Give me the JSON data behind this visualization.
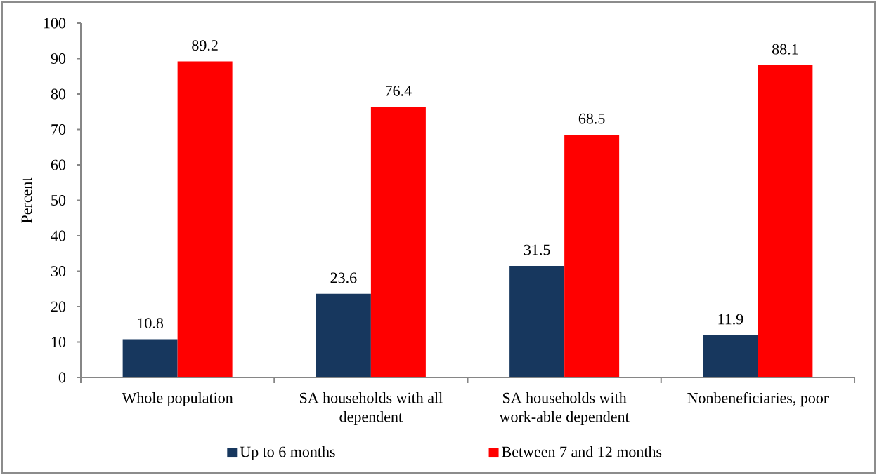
{
  "chart_data": {
    "type": "bar",
    "ylabel": "Percent",
    "categories": [
      "Whole population",
      "SA households with all dependent",
      "SA households with work-able dependent",
      "Nonbeneficiaries, poor"
    ],
    "series": [
      {
        "name": "Up to 6 months",
        "color": "#17375e",
        "values": [
          10.8,
          23.6,
          31.5,
          11.9
        ]
      },
      {
        "name": "Between 7 and 12 months",
        "color": "#ff0000",
        "values": [
          89.2,
          76.4,
          68.5,
          88.1
        ]
      }
    ],
    "ylim": [
      0,
      100
    ],
    "yticks": [
      0,
      10,
      20,
      30,
      40,
      50,
      60,
      70,
      80,
      90,
      100
    ],
    "data_labels": true,
    "legend": "bottom",
    "grid": false
  }
}
